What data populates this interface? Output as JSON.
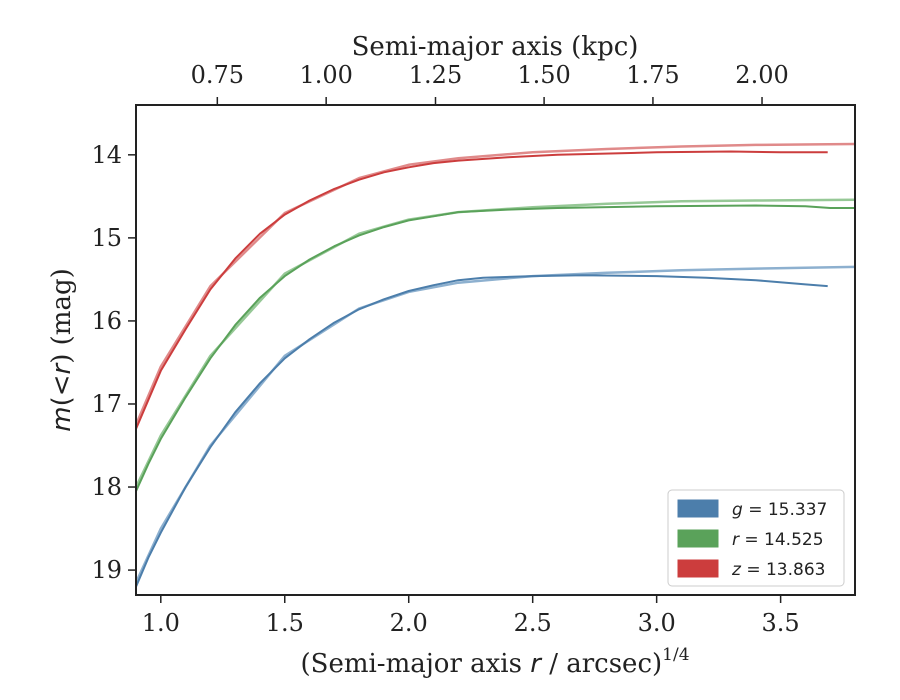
{
  "chart_data": {
    "type": "line",
    "xlabel_prefix": "(Semi-major axis ",
    "xlabel_var": "r",
    "xlabel_mid": " / arcsec)",
    "xlabel_exp": "1/4",
    "ylabel_var_m": "m",
    "ylabel_lt": "(<",
    "ylabel_var_r": "r",
    "ylabel_suffix": ") (mag)",
    "top_xlabel": "Semi-major axis (kpc)",
    "xlim": [
      0.9,
      3.8
    ],
    "ylim": [
      19.3,
      13.4
    ],
    "y_inverted": true,
    "x_ticks": [
      {
        "value": 1.0,
        "label": "1.0"
      },
      {
        "value": 1.5,
        "label": "1.5"
      },
      {
        "value": 2.0,
        "label": "2.0"
      },
      {
        "value": 2.5,
        "label": "2.5"
      },
      {
        "value": 3.0,
        "label": "3.0"
      },
      {
        "value": 3.5,
        "label": "3.5"
      }
    ],
    "y_ticks": [
      {
        "value": 14,
        "label": "14"
      },
      {
        "value": 15,
        "label": "15"
      },
      {
        "value": 16,
        "label": "16"
      },
      {
        "value": 17,
        "label": "17"
      },
      {
        "value": 18,
        "label": "18"
      },
      {
        "value": 19,
        "label": "19"
      }
    ],
    "top_ticks": [
      {
        "value": 0.75,
        "label": "0.75",
        "x_equiv": 1.228
      },
      {
        "value": 1.0,
        "label": "1.00",
        "x_equiv": 1.667
      },
      {
        "value": 1.25,
        "label": "1.25",
        "x_equiv": 2.108
      },
      {
        "value": 1.5,
        "label": "1.50",
        "x_equiv": 2.546
      },
      {
        "value": 1.75,
        "label": "1.75",
        "x_equiv": 2.985
      },
      {
        "value": 2.0,
        "label": "2.00",
        "x_equiv": 3.425
      }
    ],
    "legend_position": "lower-right",
    "series": [
      {
        "name": "g",
        "legend_label": "g = 15.337",
        "legend_var": "g",
        "legend_value": "= 15.337",
        "color": "#4c7eab",
        "model_color": "#8db0cf",
        "model_asymptote": 15.337,
        "data": [
          [
            0.9,
            19.2
          ],
          [
            0.95,
            18.85
          ],
          [
            1.0,
            18.55
          ],
          [
            1.1,
            18.0
          ],
          [
            1.2,
            17.52
          ],
          [
            1.3,
            17.1
          ],
          [
            1.4,
            16.75
          ],
          [
            1.5,
            16.45
          ],
          [
            1.6,
            16.22
          ],
          [
            1.7,
            16.02
          ],
          [
            1.8,
            15.86
          ],
          [
            1.9,
            15.74
          ],
          [
            2.0,
            15.64
          ],
          [
            2.1,
            15.57
          ],
          [
            2.2,
            15.51
          ],
          [
            2.3,
            15.48
          ],
          [
            2.5,
            15.46
          ],
          [
            2.7,
            15.45
          ],
          [
            3.0,
            15.46
          ],
          [
            3.2,
            15.48
          ],
          [
            3.4,
            15.51
          ],
          [
            3.6,
            15.56
          ],
          [
            3.69,
            15.58
          ]
        ],
        "model": [
          [
            0.9,
            19.15
          ],
          [
            1.0,
            18.5
          ],
          [
            1.2,
            17.5
          ],
          [
            1.5,
            16.42
          ],
          [
            1.8,
            15.85
          ],
          [
            2.0,
            15.65
          ],
          [
            2.2,
            15.54
          ],
          [
            2.5,
            15.46
          ],
          [
            2.8,
            15.42
          ],
          [
            3.1,
            15.39
          ],
          [
            3.4,
            15.37
          ],
          [
            3.8,
            15.35
          ]
        ]
      },
      {
        "name": "r",
        "legend_label": "r = 14.525",
        "legend_var": "r",
        "legend_value": "= 14.525",
        "color": "#5aa25a",
        "model_color": "#96c896",
        "model_asymptote": 14.525,
        "data": [
          [
            0.9,
            18.05
          ],
          [
            0.95,
            17.72
          ],
          [
            1.0,
            17.42
          ],
          [
            1.1,
            16.92
          ],
          [
            1.2,
            16.45
          ],
          [
            1.3,
            16.05
          ],
          [
            1.4,
            15.72
          ],
          [
            1.5,
            15.46
          ],
          [
            1.6,
            15.26
          ],
          [
            1.7,
            15.1
          ],
          [
            1.8,
            14.97
          ],
          [
            1.9,
            14.87
          ],
          [
            2.0,
            14.79
          ],
          [
            2.1,
            14.74
          ],
          [
            2.2,
            14.69
          ],
          [
            2.4,
            14.66
          ],
          [
            2.6,
            14.64
          ],
          [
            3.0,
            14.62
          ],
          [
            3.4,
            14.61
          ],
          [
            3.6,
            14.62
          ],
          [
            3.7,
            14.64
          ],
          [
            3.8,
            14.64
          ]
        ],
        "model": [
          [
            0.9,
            18.0
          ],
          [
            1.0,
            17.38
          ],
          [
            1.2,
            16.42
          ],
          [
            1.5,
            15.43
          ],
          [
            1.8,
            14.95
          ],
          [
            2.0,
            14.78
          ],
          [
            2.2,
            14.69
          ],
          [
            2.5,
            14.63
          ],
          [
            2.8,
            14.59
          ],
          [
            3.1,
            14.56
          ],
          [
            3.4,
            14.55
          ],
          [
            3.8,
            14.54
          ]
        ]
      },
      {
        "name": "z",
        "legend_label": "z = 13.863",
        "legend_var": "z",
        "legend_value": "= 13.863",
        "color": "#cc3d3d",
        "model_color": "#e08a8a",
        "model_asymptote": 13.863,
        "data": [
          [
            0.9,
            17.3
          ],
          [
            0.95,
            16.95
          ],
          [
            1.0,
            16.6
          ],
          [
            1.1,
            16.1
          ],
          [
            1.2,
            15.62
          ],
          [
            1.3,
            15.25
          ],
          [
            1.4,
            14.95
          ],
          [
            1.5,
            14.72
          ],
          [
            1.6,
            14.55
          ],
          [
            1.7,
            14.41
          ],
          [
            1.8,
            14.3
          ],
          [
            1.9,
            14.21
          ],
          [
            2.0,
            14.15
          ],
          [
            2.1,
            14.1
          ],
          [
            2.2,
            14.07
          ],
          [
            2.4,
            14.03
          ],
          [
            2.6,
            14.0
          ],
          [
            3.0,
            13.97
          ],
          [
            3.3,
            13.96
          ],
          [
            3.5,
            13.97
          ],
          [
            3.69,
            13.97
          ]
        ],
        "model": [
          [
            0.9,
            17.25
          ],
          [
            1.0,
            16.55
          ],
          [
            1.2,
            15.58
          ],
          [
            1.5,
            14.7
          ],
          [
            1.8,
            14.28
          ],
          [
            2.0,
            14.12
          ],
          [
            2.2,
            14.04
          ],
          [
            2.5,
            13.97
          ],
          [
            2.8,
            13.93
          ],
          [
            3.1,
            13.9
          ],
          [
            3.4,
            13.88
          ],
          [
            3.8,
            13.87
          ]
        ]
      }
    ]
  }
}
